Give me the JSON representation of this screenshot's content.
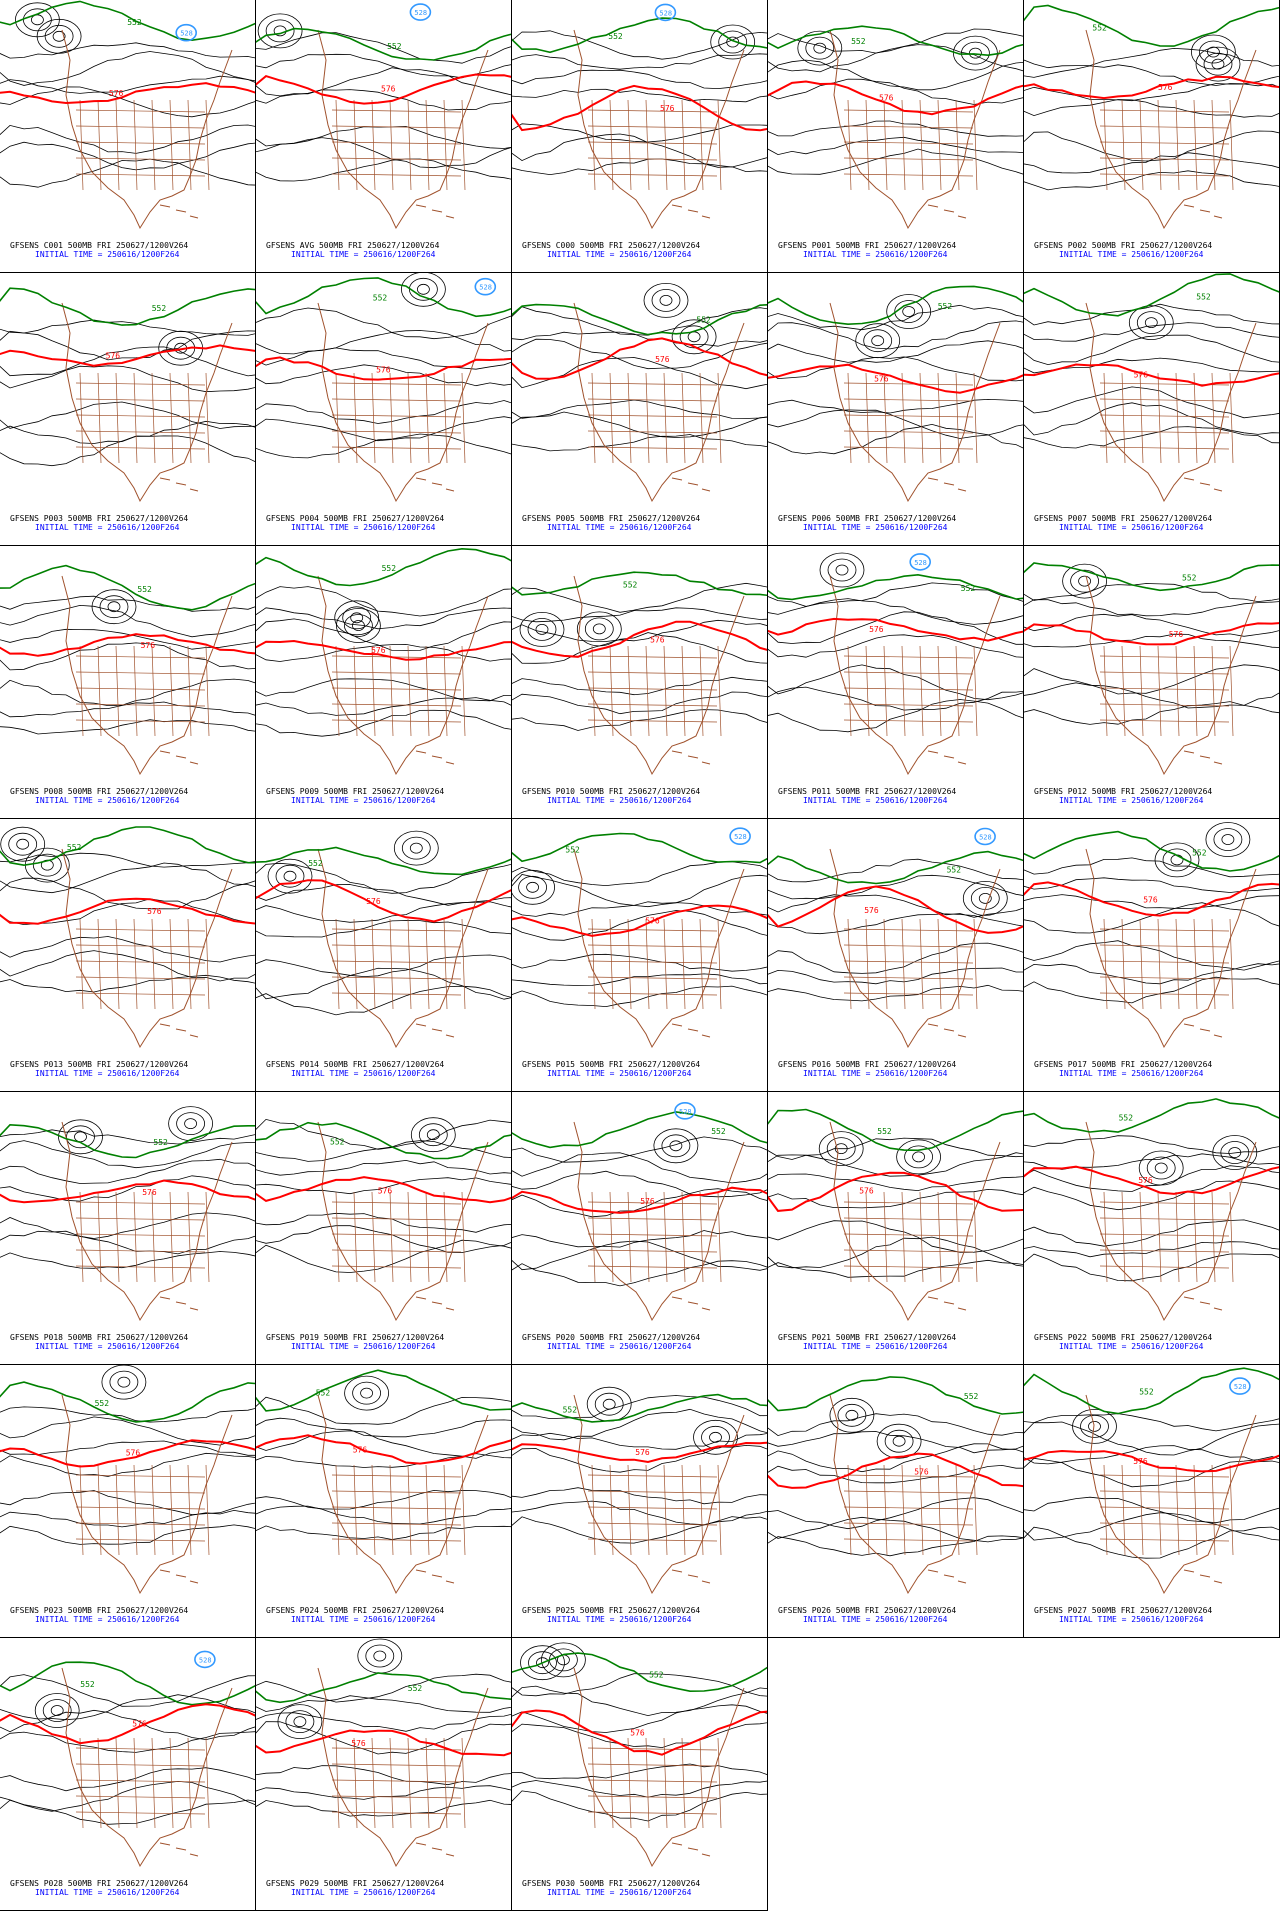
{
  "colors": {
    "background": "#ffffff",
    "border": "#000000",
    "contour_black": "#000000",
    "contour_576": "#ff0000",
    "contour_552": "#008000",
    "contour_528": "#3399ff",
    "map_outline": "#a0522d",
    "caption_top": "#000000",
    "caption_bottom": "#0000ff"
  },
  "contour_labels": {
    "red": "576",
    "green": "552",
    "blue": "528"
  },
  "panels": [
    {
      "member": "GFSENS C001",
      "caption": "GFSENS C001 500MB FRI 250627/1200V264",
      "initial": "INITIAL TIME = 250616/1200F264"
    },
    {
      "member": "GFSENS AVG",
      "caption": "GFSENS AVG 500MB FRI 250627/1200V264",
      "initial": "INITIAL TIME = 250616/1200F264"
    },
    {
      "member": "GFSENS C000",
      "caption": "GFSENS C000 500MB FRI 250627/1200V264",
      "initial": "INITIAL TIME = 250616/1200F264"
    },
    {
      "member": "GFSENS P001",
      "caption": "GFSENS P001 500MB FRI 250627/1200V264",
      "initial": "INITIAL TIME = 250616/1200F264"
    },
    {
      "member": "GFSENS P002",
      "caption": "GFSENS P002 500MB FRI 250627/1200V264",
      "initial": "INITIAL TIME = 250616/1200F264"
    },
    {
      "member": "GFSENS P003",
      "caption": "GFSENS P003 500MB FRI 250627/1200V264",
      "initial": "INITIAL TIME = 250616/1200F264"
    },
    {
      "member": "GFSENS P004",
      "caption": "GFSENS P004 500MB FRI 250627/1200V264",
      "initial": "INITIAL TIME = 250616/1200F264"
    },
    {
      "member": "GFSENS P005",
      "caption": "GFSENS P005 500MB FRI 250627/1200V264",
      "initial": "INITIAL TIME = 250616/1200F264"
    },
    {
      "member": "GFSENS P006",
      "caption": "GFSENS P006 500MB FRI 250627/1200V264",
      "initial": "INITIAL TIME = 250616/1200F264"
    },
    {
      "member": "GFSENS P007",
      "caption": "GFSENS P007 500MB FRI 250627/1200V264",
      "initial": "INITIAL TIME = 250616/1200F264"
    },
    {
      "member": "GFSENS P008",
      "caption": "GFSENS P008 500MB FRI 250627/1200V264",
      "initial": "INITIAL TIME = 250616/1200F264"
    },
    {
      "member": "GFSENS P009",
      "caption": "GFSENS P009 500MB FRI 250627/1200V264",
      "initial": "INITIAL TIME = 250616/1200F264"
    },
    {
      "member": "GFSENS P010",
      "caption": "GFSENS P010 500MB FRI 250627/1200V264",
      "initial": "INITIAL TIME = 250616/1200F264"
    },
    {
      "member": "GFSENS P011",
      "caption": "GFSENS P011 500MB FRI 250627/1200V264",
      "initial": "INITIAL TIME = 250616/1200F264"
    },
    {
      "member": "GFSENS P012",
      "caption": "GFSENS P012 500MB FRI 250627/1200V264",
      "initial": "INITIAL TIME = 250616/1200F264"
    },
    {
      "member": "GFSENS P013",
      "caption": "GFSENS P013 500MB FRI 250627/1200V264",
      "initial": "INITIAL TIME = 250616/1200F264"
    },
    {
      "member": "GFSENS P014",
      "caption": "GFSENS P014 500MB FRI 250627/1200V264",
      "initial": "INITIAL TIME = 250616/1200F264"
    },
    {
      "member": "GFSENS P015",
      "caption": "GFSENS P015 500MB FRI 250627/1200V264",
      "initial": "INITIAL TIME = 250616/1200F264"
    },
    {
      "member": "GFSENS P016",
      "caption": "GFSENS P016 500MB FRI 250627/1200V264",
      "initial": "INITIAL TIME = 250616/1200F264"
    },
    {
      "member": "GFSENS P017",
      "caption": "GFSENS P017 500MB FRI 250627/1200V264",
      "initial": "INITIAL TIME = 250616/1200F264"
    },
    {
      "member": "GFSENS P018",
      "caption": "GFSENS P018 500MB FRI 250627/1200V264",
      "initial": "INITIAL TIME = 250616/1200F264"
    },
    {
      "member": "GFSENS P019",
      "caption": "GFSENS P019 500MB FRI 250627/1200V264",
      "initial": "INITIAL TIME = 250616/1200F264"
    },
    {
      "member": "GFSENS P020",
      "caption": "GFSENS P020 500MB FRI 250627/1200V264",
      "initial": "INITIAL TIME = 250616/1200F264"
    },
    {
      "member": "GFSENS P021",
      "caption": "GFSENS P021 500MB FRI 250627/1200V264",
      "initial": "INITIAL TIME = 250616/1200F264"
    },
    {
      "member": "GFSENS P022",
      "caption": "GFSENS P022 500MB FRI 250627/1200V264",
      "initial": "INITIAL TIME = 250616/1200F264"
    },
    {
      "member": "GFSENS P023",
      "caption": "GFSENS P023 500MB FRI 250627/1200V264",
      "initial": "INITIAL TIME = 250616/1200F264"
    },
    {
      "member": "GFSENS P024",
      "caption": "GFSENS P024 500MB FRI 250627/1200V264",
      "initial": "INITIAL TIME = 250616/1200F264"
    },
    {
      "member": "GFSENS P025",
      "caption": "GFSENS P025 500MB FRI 250627/1200V264",
      "initial": "INITIAL TIME = 250616/1200F264"
    },
    {
      "member": "GFSENS P026",
      "caption": "GFSENS P026 500MB FRI 250627/1200V264",
      "initial": "INITIAL TIME = 250616/1200F264"
    },
    {
      "member": "GFSENS P027",
      "caption": "GFSENS P027 500MB FRI 250627/1200V264",
      "initial": "INITIAL TIME = 250616/1200F264"
    },
    {
      "member": "GFSENS P028",
      "caption": "GFSENS P028 500MB FRI 250627/1200V264",
      "initial": "INITIAL TIME = 250616/1200F264"
    },
    {
      "member": "GFSENS P029",
      "caption": "GFSENS P029 500MB FRI 250627/1200V264",
      "initial": "INITIAL TIME = 250616/1200F264"
    },
    {
      "member": "GFSENS P030",
      "caption": "GFSENS P030 500MB FRI 250627/1200V264",
      "initial": "INITIAL TIME = 250616/1200F264"
    }
  ]
}
